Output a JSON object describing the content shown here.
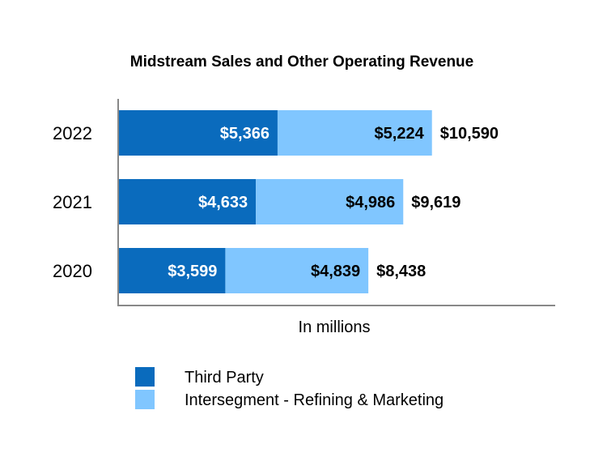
{
  "chart_data": {
    "type": "bar",
    "orientation": "horizontal",
    "stacked": true,
    "title": "Midstream Sales and Other Operating Revenue",
    "xlabel": "In millions",
    "categories": [
      "2022",
      "2021",
      "2020"
    ],
    "series": [
      {
        "name": "Third Party",
        "values": [
          5366,
          4633,
          3599
        ],
        "labels": [
          "$5,366",
          "$4,633",
          "$3,599"
        ],
        "color": "#0a6bbd",
        "label_color": "#ffffff"
      },
      {
        "name": "Intersegment - Refining & Marketing",
        "values": [
          5224,
          4986,
          4839
        ],
        "labels": [
          "$5,224",
          "$4,986",
          "$4,839"
        ],
        "color": "#80c6ff",
        "label_color": "#000000"
      }
    ],
    "totals": [
      10590,
      9619,
      8438
    ],
    "total_labels": [
      "$10,590",
      "$9,619",
      "$8,438"
    ],
    "xlim": [
      0,
      14760
    ],
    "grid": false,
    "legend_position": "bottom"
  }
}
